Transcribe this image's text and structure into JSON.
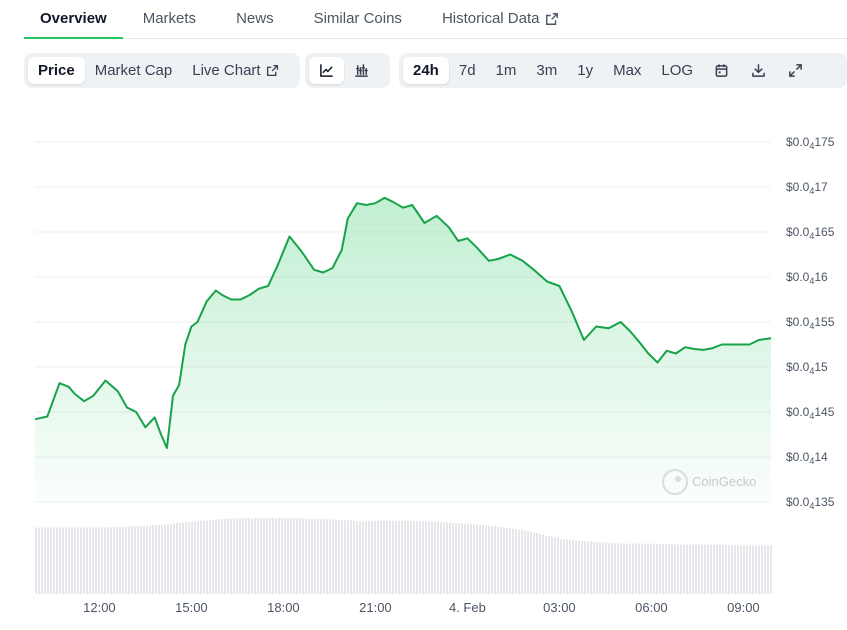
{
  "tabs": [
    {
      "label": "Overview",
      "active": true
    },
    {
      "label": "Markets"
    },
    {
      "label": "News"
    },
    {
      "label": "Similar Coins"
    },
    {
      "label": "Historical Data",
      "external": true
    }
  ],
  "toolbar": {
    "metrics": [
      "Price",
      "Market Cap",
      "Live Chart"
    ],
    "selected_metric": "Price",
    "chart_types": [
      "line-chart-icon",
      "candlestick-icon"
    ],
    "selected_chart_type": "line-chart-icon",
    "ranges": [
      "24h",
      "7d",
      "1m",
      "3m",
      "1y",
      "Max",
      "LOG"
    ],
    "selected_range": "24h",
    "actions": [
      "calendar-icon",
      "download-icon",
      "fullscreen-icon"
    ]
  },
  "watermark": "CoinGecko",
  "colors": {
    "line": "#16a34a",
    "fill": "#22c55e",
    "volume": "#e5e7eb",
    "grid": "#eef0f2"
  },
  "chart_data": {
    "type": "area",
    "y_tick_labels": [
      {
        "value": 1.75e-05,
        "prefix": "$0.0",
        "sub": "4",
        "suffix": "175"
      },
      {
        "value": 1.7e-05,
        "prefix": "$0.0",
        "sub": "4",
        "suffix": "17"
      },
      {
        "value": 1.65e-05,
        "prefix": "$0.0",
        "sub": "4",
        "suffix": "165"
      },
      {
        "value": 1.6e-05,
        "prefix": "$0.0",
        "sub": "4",
        "suffix": "16"
      },
      {
        "value": 1.55e-05,
        "prefix": "$0.0",
        "sub": "4",
        "suffix": "155"
      },
      {
        "value": 1.5e-05,
        "prefix": "$0.0",
        "sub": "4",
        "suffix": "15"
      },
      {
        "value": 1.45e-05,
        "prefix": "$0.0",
        "sub": "4",
        "suffix": "145"
      },
      {
        "value": 1.4e-05,
        "prefix": "$0.0",
        "sub": "4",
        "suffix": "14"
      },
      {
        "value": 1.35e-05,
        "prefix": "$0.0",
        "sub": "4",
        "suffix": "135"
      }
    ],
    "ylim": [
      1.35e-05,
      1.75e-05
    ],
    "x_tick_labels": [
      {
        "label": "12:00",
        "hour": 12
      },
      {
        "label": "15:00",
        "hour": 15
      },
      {
        "label": "18:00",
        "hour": 18
      },
      {
        "label": "21:00",
        "hour": 21
      },
      {
        "label": "4. Feb",
        "hour": 24
      },
      {
        "label": "03:00",
        "hour": 27
      },
      {
        "label": "06:00",
        "hour": 30
      },
      {
        "label": "09:00",
        "hour": 33
      }
    ],
    "xlim_hours": [
      9.9,
      33.9
    ],
    "series": [
      {
        "x_hours": [
          9.9,
          10.3,
          10.7,
          11.0,
          11.2,
          11.5,
          11.8,
          12.2,
          12.6,
          12.9,
          13.2,
          13.5,
          13.8,
          14.0,
          14.2,
          14.4,
          14.6,
          14.8,
          15.0,
          15.2,
          15.5,
          15.8,
          16.0,
          16.3,
          16.6,
          16.9,
          17.2,
          17.5,
          17.8,
          18.2,
          18.6,
          19.0,
          19.3,
          19.6,
          19.9,
          20.1,
          20.4,
          20.7,
          21.0,
          21.3,
          21.6,
          21.9,
          22.2,
          22.6,
          23.0,
          23.4,
          23.7,
          24.0,
          24.3,
          24.7,
          25.0,
          25.4,
          25.8,
          26.2,
          26.6,
          27.0,
          27.4,
          27.8,
          28.2,
          28.6,
          29.0,
          29.3,
          29.6,
          29.9,
          30.2,
          30.5,
          30.8,
          31.1,
          31.4,
          31.7,
          32.0,
          32.3,
          32.6,
          32.9,
          33.2,
          33.5,
          33.9
        ],
        "values": [
          1.442e-05,
          1.445e-05,
          1.482e-05,
          1.478e-05,
          1.47e-05,
          1.462e-05,
          1.468e-05,
          1.485e-05,
          1.473e-05,
          1.455e-05,
          1.45e-05,
          1.433e-05,
          1.444e-05,
          1.426e-05,
          1.41e-05,
          1.468e-05,
          1.48e-05,
          1.525e-05,
          1.545e-05,
          1.55e-05,
          1.573e-05,
          1.585e-05,
          1.58e-05,
          1.575e-05,
          1.575e-05,
          1.58e-05,
          1.587e-05,
          1.59e-05,
          1.612e-05,
          1.645e-05,
          1.628e-05,
          1.608e-05,
          1.605e-05,
          1.61e-05,
          1.63e-05,
          1.665e-05,
          1.682e-05,
          1.68e-05,
          1.682e-05,
          1.688e-05,
          1.683e-05,
          1.677e-05,
          1.68e-05,
          1.66e-05,
          1.668e-05,
          1.655e-05,
          1.64e-05,
          1.643e-05,
          1.633e-05,
          1.618e-05,
          1.62e-05,
          1.625e-05,
          1.618e-05,
          1.607e-05,
          1.595e-05,
          1.59e-05,
          1.562e-05,
          1.53e-05,
          1.545e-05,
          1.543e-05,
          1.55e-05,
          1.54e-05,
          1.528e-05,
          1.515e-05,
          1.505e-05,
          1.518e-05,
          1.515e-05,
          1.522e-05,
          1.52e-05,
          1.519e-05,
          1.521e-05,
          1.525e-05,
          1.525e-05,
          1.525e-05,
          1.525e-05,
          1.53e-05,
          1.532e-05
        ]
      }
    ],
    "volume": {
      "x_hours": [
        9.9,
        11,
        12,
        13,
        14,
        15,
        16,
        17,
        18,
        19,
        20,
        20.5,
        21,
        22,
        23,
        24,
        25,
        26,
        27,
        28,
        29,
        30,
        31,
        32,
        33,
        33.9
      ],
      "relative": [
        0.7,
        0.7,
        0.7,
        0.71,
        0.73,
        0.76,
        0.79,
        0.8,
        0.8,
        0.79,
        0.78,
        0.76,
        0.77,
        0.77,
        0.76,
        0.74,
        0.71,
        0.66,
        0.58,
        0.55,
        0.53,
        0.53,
        0.52,
        0.52,
        0.51,
        0.51
      ]
    },
    "grid": true,
    "watermark": "CoinGecko"
  }
}
